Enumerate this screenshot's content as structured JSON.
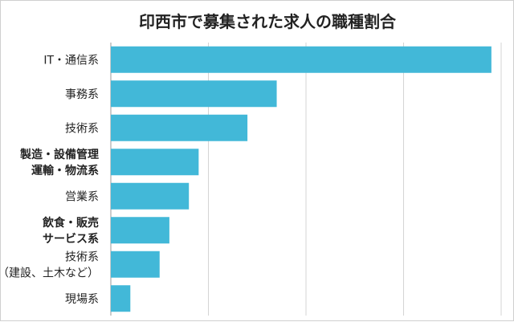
{
  "chart_data": {
    "type": "bar",
    "orientation": "horizontal",
    "title": "印西市で募集された求人の職種割合",
    "xlabel": "",
    "ylabel": "",
    "grid": true,
    "legend": "none",
    "xlim": [
      0,
      40
    ],
    "bar_color": "#42b8d8",
    "categories": [
      {
        "lines": [
          "IT・通信系"
        ],
        "bold": false
      },
      {
        "lines": [
          "事務系"
        ],
        "bold": false
      },
      {
        "lines": [
          "技術系"
        ],
        "bold": false
      },
      {
        "lines": [
          "製造・設備管理",
          "運輸・物流系"
        ],
        "bold": true
      },
      {
        "lines": [
          "営業系"
        ],
        "bold": false
      },
      {
        "lines": [
          "飲食・販売",
          "サービス系"
        ],
        "bold": true
      },
      {
        "lines": [
          "技術系",
          "（建設、土木など）"
        ],
        "bold": false
      },
      {
        "lines": [
          "現場系"
        ],
        "bold": false
      }
    ],
    "values": [
      39.0,
      17.0,
      14.0,
      9.0,
      8.0,
      6.0,
      5.0,
      2.0
    ]
  }
}
